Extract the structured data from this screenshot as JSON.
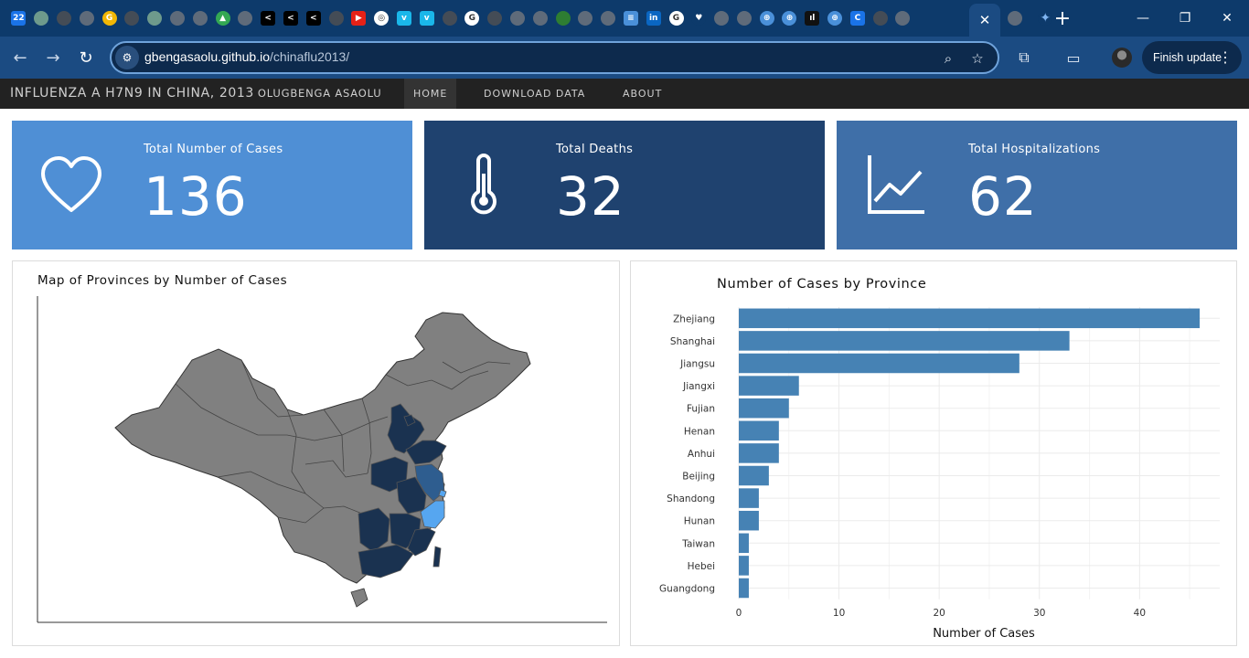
{
  "browser": {
    "tab_favicons": [
      {
        "icon": "calendar-icon",
        "label": "22",
        "color": "#1a73e8",
        "square": true
      },
      {
        "icon": "site-icon",
        "label": "",
        "color": "#6e9a8c"
      },
      {
        "icon": "github-icon",
        "label": "",
        "color": "#444c56"
      },
      {
        "icon": "globe-icon",
        "label": "",
        "color": "#5f6b7a"
      },
      {
        "icon": "g-icon",
        "label": "G",
        "color": "#f2b705"
      },
      {
        "icon": "github-icon",
        "label": "",
        "color": "#444c56"
      },
      {
        "icon": "site-icon",
        "label": "",
        "color": "#6e9a8c"
      },
      {
        "icon": "globe-icon",
        "label": "",
        "color": "#5f6b7a"
      },
      {
        "icon": "globe-icon",
        "label": "",
        "color": "#5f6b7a"
      },
      {
        "icon": "drive-icon",
        "label": "▲",
        "color": "#34a853"
      },
      {
        "icon": "globe-icon",
        "label": "",
        "color": "#5f6b7a"
      },
      {
        "icon": "share-icon",
        "label": "<",
        "color": "#000000",
        "square": true
      },
      {
        "icon": "share-icon",
        "label": "<",
        "color": "#000000",
        "square": true
      },
      {
        "icon": "share-icon",
        "label": "<",
        "color": "#000000",
        "square": true
      },
      {
        "icon": "github-icon",
        "label": "",
        "color": "#444c56"
      },
      {
        "icon": "youtube-icon",
        "label": "▶",
        "color": "#e62117",
        "square": true
      },
      {
        "icon": "openai-icon",
        "label": "◎",
        "color": "#ffffff"
      },
      {
        "icon": "vimeo-icon",
        "label": "v",
        "color": "#1ab7ea",
        "square": true
      },
      {
        "icon": "vimeo-icon",
        "label": "v",
        "color": "#1ab7ea",
        "square": true
      },
      {
        "icon": "github-icon",
        "label": "",
        "color": "#444c56"
      },
      {
        "icon": "google-icon",
        "label": "G",
        "color": "#ffffff"
      },
      {
        "icon": "github-icon",
        "label": "",
        "color": "#444c56"
      },
      {
        "icon": "globe-icon",
        "label": "",
        "color": "#5f6b7a"
      },
      {
        "icon": "globe-icon",
        "label": "",
        "color": "#5f6b7a"
      },
      {
        "icon": "c-icon",
        "label": "",
        "color": "#2e7d32"
      },
      {
        "icon": "globe-icon",
        "label": "",
        "color": "#5f6b7a"
      },
      {
        "icon": "globe-icon",
        "label": "",
        "color": "#5f6b7a"
      },
      {
        "icon": "flag-icon",
        "label": "≡",
        "color": "#4a90d9",
        "square": true
      },
      {
        "icon": "linkedin-icon",
        "label": "in",
        "color": "#0a66c2",
        "square": true
      },
      {
        "icon": "google-icon",
        "label": "G",
        "color": "#ffffff"
      },
      {
        "icon": "heart-icon",
        "label": "♥",
        "color": "#0d3a6b"
      },
      {
        "icon": "globe-icon",
        "label": "",
        "color": "#5f6b7a"
      },
      {
        "icon": "globe-icon",
        "label": "",
        "color": "#5f6b7a"
      },
      {
        "icon": "grid-globe-icon",
        "label": "⊕",
        "color": "#4a90d9"
      },
      {
        "icon": "grid-globe-icon",
        "label": "⊕",
        "color": "#4a90d9"
      },
      {
        "icon": "bars-icon",
        "label": "ıl",
        "color": "#111111",
        "square": true
      },
      {
        "icon": "grid-globe-icon",
        "label": "⊕",
        "color": "#4a90d9"
      },
      {
        "icon": "c-icon",
        "label": "C",
        "color": "#1a73e8",
        "square": true
      },
      {
        "icon": "github-icon",
        "label": "",
        "color": "#444c56"
      },
      {
        "icon": "globe-icon",
        "label": "",
        "color": "#5f6b7a"
      }
    ],
    "url_host": "gbengasaolu.github.io",
    "url_path": "/chinaflu2013/",
    "finish_update_label": "Finish update"
  },
  "nav": {
    "brand": "INFLUENZA A H7N9 IN CHINA, 2013",
    "author": "OLUGBENGA ASAOLU",
    "links": [
      "HOME",
      "DOWNLOAD DATA",
      "ABOUT"
    ],
    "active": "HOME"
  },
  "value_boxes": [
    {
      "title": "Total Number of Cases",
      "value": "136",
      "icon": "heart-icon",
      "color": "#4f8fd5"
    },
    {
      "title": "Total Deaths",
      "value": "32",
      "icon": "thermometer-icon",
      "color": "#1f426f"
    },
    {
      "title": "Total Hospitalizations",
      "value": "62",
      "icon": "line-chart-icon",
      "color": "#3f6fa8"
    }
  ],
  "map_panel": {
    "title": "Map of Provinces by Number of Cases",
    "base_color": "#808080",
    "case_colors": [
      "#1a3250",
      "#2e5d8f",
      "#56a6f0"
    ]
  },
  "chart_data": {
    "type": "bar",
    "orientation": "horizontal",
    "title": "Number of Cases by Province",
    "xlabel": "Number of Cases",
    "ylabel": "",
    "categories": [
      "Zhejiang",
      "Shanghai",
      "Jiangsu",
      "Jiangxi",
      "Fujian",
      "Henan",
      "Anhui",
      "Beijing",
      "Shandong",
      "Hunan",
      "Taiwan",
      "Hebei",
      "Guangdong"
    ],
    "values": [
      46,
      33,
      28,
      6,
      5,
      4,
      4,
      3,
      2,
      2,
      1,
      1,
      1
    ],
    "xlim": [
      0,
      48
    ],
    "xticks": [
      0,
      10,
      20,
      30,
      40
    ],
    "grid": true,
    "bar_color": "#4682b4"
  }
}
